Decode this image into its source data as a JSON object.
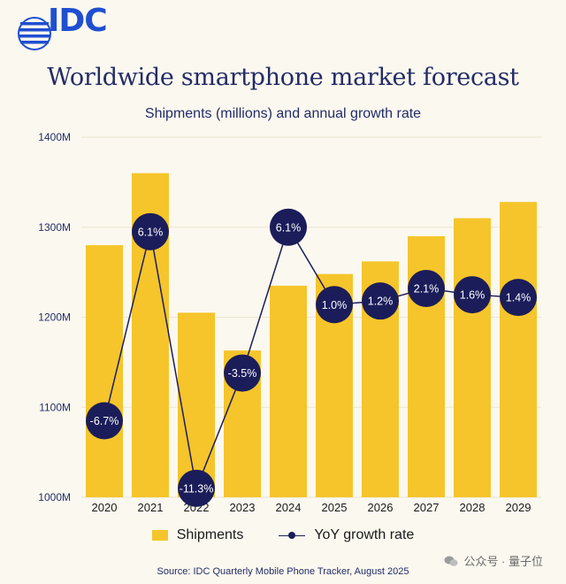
{
  "logo": {
    "text": "IDC"
  },
  "title": "Worldwide smartphone market forecast",
  "subtitle": "Shipments (millions) and annual growth rate",
  "source": "Source:  IDC Quarterly Mobile Phone Tracker, August 2025",
  "watermark": "公众号 · 量子位",
  "legend": {
    "shipments": "Shipments",
    "growth": "YoY growth rate"
  },
  "colors": {
    "bar": "#f5c52b",
    "marker": "#1b1d5a",
    "line": "#1b1d5a",
    "text": "#232c68"
  },
  "chart_data": {
    "type": "bar",
    "title": "Worldwide smartphone market forecast",
    "subtitle": "Shipments (millions) and annual growth rate",
    "categories": [
      "2020",
      "2021",
      "2022",
      "2023",
      "2024",
      "2025",
      "2026",
      "2027",
      "2028",
      "2029"
    ],
    "ylim": [
      1000,
      1400
    ],
    "yticks": [
      1000,
      1100,
      1200,
      1300,
      1400
    ],
    "ytick_labels": [
      "1000M",
      "1100M",
      "1200M",
      "1300M",
      "1400M"
    ],
    "grid": true,
    "series": [
      {
        "name": "Shipments",
        "type": "bar",
        "values": [
          1280,
          1360,
          1205,
          1163,
          1235,
          1248,
          1262,
          1290,
          1310,
          1328
        ]
      },
      {
        "name": "YoY growth rate",
        "type": "line",
        "values": [
          -6.7,
          6.1,
          -11.3,
          -3.5,
          6.1,
          1.0,
          1.2,
          2.1,
          1.6,
          1.4
        ],
        "labels": [
          "-6.7%",
          "6.1%",
          "-11.3%",
          "-3.5%",
          "6.1%",
          "1.0%",
          "1.2%",
          "2.1%",
          "1.6%",
          "1.4%"
        ],
        "plot_on_scale": [
          1085,
          1295,
          1010,
          1138,
          1300,
          1214,
          1218,
          1232,
          1225,
          1222
        ]
      }
    ],
    "legend_position": "bottom-center"
  }
}
